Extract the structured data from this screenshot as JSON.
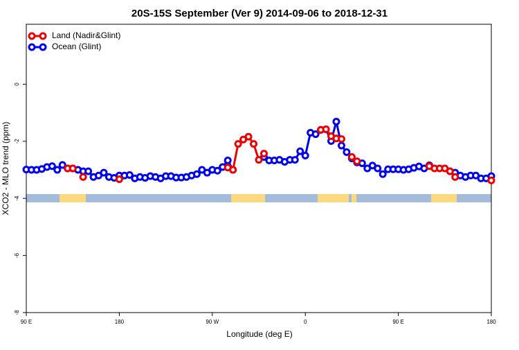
{
  "chart_data": {
    "type": "line",
    "title": "20S-15S September (Ver 9)   2014-09-06 to 2018-12-31",
    "xlabel": "Longitude (deg E)",
    "ylabel": "XCO2 - MLO trend (ppm)",
    "x": [
      90,
      95,
      100,
      105,
      110,
      115,
      120,
      125,
      130,
      135,
      140,
      145,
      150,
      155,
      160,
      165,
      170,
      175,
      180,
      185,
      190,
      195,
      200,
      205,
      210,
      215,
      220,
      225,
      230,
      235,
      240,
      245,
      250,
      255,
      260,
      265,
      270,
      275,
      280,
      285,
      290,
      295,
      300,
      305,
      310,
      315,
      320,
      325,
      330,
      335,
      340,
      345,
      350,
      355,
      360,
      365,
      370,
      375,
      380,
      385,
      390,
      395,
      400,
      405,
      410,
      415,
      420,
      425,
      430,
      435,
      440,
      445,
      450,
      455,
      460,
      465,
      470,
      475,
      480,
      485,
      490,
      495,
      500,
      505,
      510,
      515,
      520,
      525,
      530,
      535,
      540
    ],
    "xlim": [
      90,
      540
    ],
    "xticks": [
      {
        "value": 90,
        "label": "90 E"
      },
      {
        "value": 180,
        "label": "180"
      },
      {
        "value": 270,
        "label": "90 W"
      },
      {
        "value": 360,
        "label": "0"
      },
      {
        "value": 450,
        "label": "90 E"
      },
      {
        "value": 540,
        "label": "180"
      }
    ],
    "ylim": [
      -8,
      2.1
    ],
    "yticks": [
      -8,
      -6,
      -4,
      -2,
      0
    ],
    "legend": "top-left",
    "series": [
      {
        "name": "Ocean (Glint)",
        "color": "#0000ee",
        "values": [
          -2.99,
          -3.0,
          -3.0,
          -2.97,
          -2.9,
          -2.87,
          -3.0,
          -2.83,
          -2.95,
          -2.95,
          -3.0,
          -3.05,
          -3.05,
          -3.25,
          -3.2,
          -3.1,
          -3.25,
          -3.28,
          -3.2,
          -3.2,
          -3.18,
          -3.3,
          -3.25,
          -3.28,
          -3.22,
          -3.25,
          -3.3,
          -3.22,
          -3.22,
          -3.27,
          -3.27,
          -3.25,
          -3.2,
          -3.15,
          -3.0,
          -3.1,
          -3.0,
          -3.03,
          -2.9,
          -2.67,
          -3.0,
          null,
          null,
          null,
          null,
          null,
          -2.55,
          -2.67,
          -2.67,
          -2.65,
          -2.72,
          -2.65,
          -2.65,
          -2.35,
          -2.5,
          -1.7,
          -1.75,
          -1.6,
          -1.58,
          -1.99,
          -1.31,
          -2.15,
          -2.38,
          -2.6,
          -2.74,
          -2.77,
          -2.95,
          -2.85,
          -2.95,
          -3.15,
          -2.98,
          -2.98,
          -2.98,
          -3.0,
          -2.98,
          -2.93,
          -2.88,
          -2.95,
          -2.84,
          null,
          null,
          null,
          -3.05,
          -3.1,
          -3.2,
          -3.25,
          -3.2,
          -3.2,
          -3.3,
          -3.3,
          -3.22
        ]
      },
      {
        "name": "Land (Nadir&Glint)",
        "color": "#ee0000",
        "values": [
          null,
          null,
          null,
          null,
          null,
          null,
          null,
          null,
          -2.95,
          -2.95,
          null,
          -3.25,
          null,
          null,
          null,
          null,
          null,
          null,
          -3.33,
          null,
          null,
          null,
          null,
          null,
          null,
          null,
          null,
          null,
          null,
          null,
          null,
          null,
          null,
          null,
          null,
          null,
          null,
          null,
          null,
          -2.92,
          -3.0,
          -2.09,
          -1.94,
          -1.84,
          -2.09,
          -2.65,
          -2.43,
          null,
          null,
          null,
          null,
          null,
          null,
          null,
          null,
          null,
          null,
          -1.6,
          -1.58,
          -1.82,
          -1.9,
          -1.92,
          null,
          -2.55,
          -2.7,
          null,
          null,
          null,
          null,
          null,
          null,
          null,
          null,
          null,
          null,
          null,
          null,
          null,
          -2.87,
          -2.95,
          -2.95,
          -2.95,
          -3.05,
          -3.25,
          null,
          null,
          null,
          null,
          null,
          null,
          -3.37
        ]
      }
    ]
  }
}
